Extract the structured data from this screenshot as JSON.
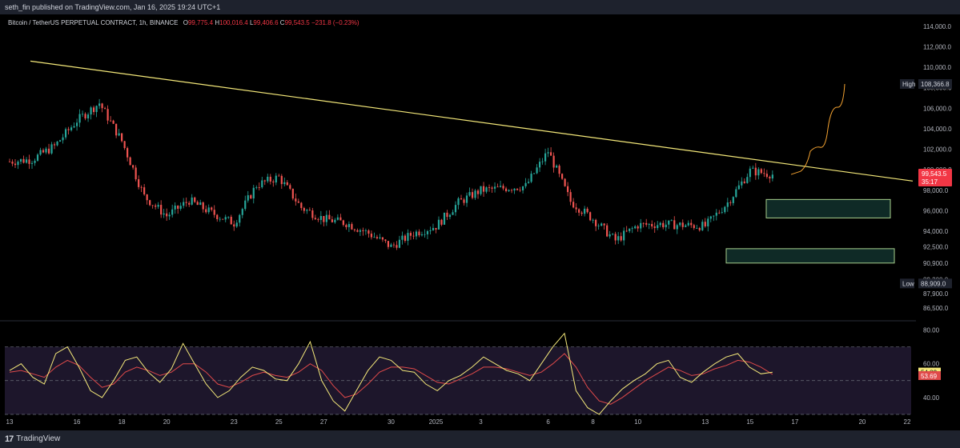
{
  "header": {
    "published": "seth_fin published on TradingView.com, Jan 16, 2025 19:24 UTC+1"
  },
  "legend": {
    "symbol": "Bitcoin / TetherUS PERPETUAL CONTRACT, 1h, BINANCE",
    "o_label": "O",
    "o_value": "99,775.4",
    "h_label": "H",
    "h_value": "100,016.4",
    "l_label": "L",
    "l_value": "99,406.6",
    "c_label": "C",
    "c_value": "99,543.5",
    "change": "−231.8 (−0.23%)"
  },
  "footer": {
    "brand": "TradingView"
  },
  "colors": {
    "background": "#000000",
    "up": "#26a69a",
    "down": "#ef5350",
    "trendline": "#f5e97a",
    "projection": "#f0a030",
    "zone_border": "#a8d08d",
    "zone_fill": "#0f2a26",
    "rsi": "#f5e97a",
    "rsi_ma": "#e04a4a",
    "rsi_band": "#2a1f3d",
    "current_price": "#f23645"
  },
  "chart_data": [
    {
      "type": "candlestick",
      "title": "Bitcoin / TetherUS PERPETUAL CONTRACT, 1h, BINANCE",
      "x_ticks": [
        "13",
        "16",
        "18",
        "20",
        "23",
        "25",
        "27",
        "30",
        "2025",
        "3",
        "6",
        "8",
        "10",
        "13",
        "15",
        "17",
        "20",
        "22"
      ],
      "y_ticks": [
        "114,000.0",
        "112,000.0",
        "110,000.0",
        "108,000.0",
        "106,000.0",
        "104,000.0",
        "102,000.0",
        "100,000.0",
        "98,000.0",
        "96,000.0",
        "94,000.0",
        "92,500.0",
        "90,900.0",
        "89,300.0",
        "87,900.0",
        "86,500.0"
      ],
      "ylim": [
        85500,
        115000
      ],
      "high_label": "High",
      "high_value": "108,366.8",
      "low_label": "Low",
      "low_value": "88,909.0",
      "current_price": "99,543.5",
      "countdown": "35:17",
      "trendline": {
        "start": [
          "13",
          110600
        ],
        "end": [
          "22",
          98900
        ]
      },
      "zones": [
        {
          "name": "upper demand zone",
          "top": 97100,
          "bottom": 95300,
          "from": "15",
          "to": "21"
        },
        {
          "name": "lower demand zone",
          "top": 92300,
          "bottom": 90900,
          "from": "13",
          "to": "21"
        }
      ],
      "projection": {
        "from": 99543.5,
        "to": 108366.8
      },
      "series_close": [
        [
          "12-13",
          100800
        ],
        [
          "12-14",
          101000
        ],
        [
          "12-15",
          102300
        ],
        [
          "12-16",
          104800
        ],
        [
          "12-17",
          106500
        ],
        [
          "12-18",
          102800
        ],
        [
          "12-19",
          97400
        ],
        [
          "12-20",
          95500
        ],
        [
          "12-21",
          97000
        ],
        [
          "12-22",
          95800
        ],
        [
          "12-23",
          94800
        ],
        [
          "12-24",
          98500
        ],
        [
          "12-25",
          99300
        ],
        [
          "12-26",
          96300
        ],
        [
          "12-27",
          95200
        ],
        [
          "12-28",
          94800
        ],
        [
          "12-29",
          93800
        ],
        [
          "12-30",
          92500
        ],
        [
          "12-31",
          93800
        ],
        [
          "01-01",
          94500
        ],
        [
          "01-02",
          96800
        ],
        [
          "01-03",
          98000
        ],
        [
          "01-04",
          98200
        ],
        [
          "01-05",
          98400
        ],
        [
          "01-06",
          101800
        ],
        [
          "01-07",
          96900
        ],
        [
          "01-08",
          95200
        ],
        [
          "01-09",
          93100
        ],
        [
          "01-10",
          94600
        ],
        [
          "01-11",
          94700
        ],
        [
          "01-12",
          94600
        ],
        [
          "01-13",
          94500
        ],
        [
          "01-14",
          96800
        ],
        [
          "01-15",
          99900
        ],
        [
          "01-16",
          99543.5
        ]
      ]
    },
    {
      "type": "line",
      "title": "",
      "y_ticks": [
        "80.00",
        "60.00",
        "40.00"
      ],
      "ylim": [
        30,
        84
      ],
      "band": [
        30,
        70
      ],
      "last_values": [
        "54.82",
        "53.69"
      ],
      "series": [
        {
          "values": [
            56,
            60,
            52,
            48,
            66,
            70,
            58,
            44,
            40,
            50,
            62,
            64,
            55,
            49,
            57,
            72,
            60,
            48,
            40,
            44,
            52,
            58,
            56,
            51,
            50,
            60,
            73,
            50,
            38,
            32,
            44,
            56,
            64,
            62,
            56,
            55,
            48,
            44,
            50,
            53,
            58,
            64,
            60,
            56,
            54,
            50,
            60,
            70,
            78,
            44,
            34,
            30,
            38,
            45,
            50,
            54,
            60,
            62,
            52,
            49,
            55,
            60,
            64,
            66,
            58,
            54,
            55
          ]
        },
        {
          "values": [
            55,
            56,
            54,
            52,
            58,
            62,
            59,
            52,
            46,
            48,
            55,
            58,
            56,
            53,
            55,
            60,
            60,
            55,
            48,
            46,
            49,
            53,
            55,
            53,
            52,
            55,
            60,
            56,
            47,
            40,
            42,
            48,
            55,
            58,
            58,
            57,
            53,
            49,
            48,
            51,
            54,
            58,
            58,
            57,
            55,
            53,
            55,
            60,
            66,
            58,
            46,
            38,
            36,
            40,
            45,
            50,
            54,
            58,
            56,
            53,
            54,
            57,
            59,
            62,
            61,
            58,
            53.7
          ]
        }
      ]
    }
  ]
}
